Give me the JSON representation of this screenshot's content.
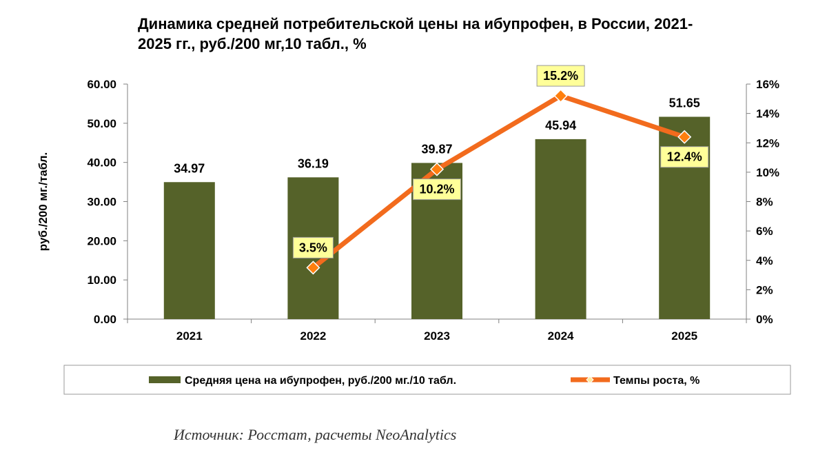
{
  "title_lines": [
    "Динамика средней потребительской цены на ибупрофен, в России, 2021-",
    "2025 гг., руб./200 мг,10 табл., %"
  ],
  "source": "Источник: Росстат, расчеты NeoAnalytics",
  "colors": {
    "bar": "#556229",
    "line": "#f26b1d",
    "marker_fill": "#ff7f0e",
    "label_bg": "#ffff99",
    "legend_marker_fill": "#ffe9a0"
  },
  "chart_data": {
    "type": "bar",
    "categories": [
      "2021",
      "2022",
      "2023",
      "2024",
      "2025"
    ],
    "series": [
      {
        "name": "Средняя цена на ибупрофен, руб./200 мг./10 табл.",
        "type": "bar",
        "axis": "left",
        "values": [
          34.97,
          36.19,
          39.87,
          45.94,
          51.65
        ],
        "labels": [
          "34.97",
          "36.19",
          "39.87",
          "45.94",
          "51.65"
        ]
      },
      {
        "name": "Темпы роста, %",
        "type": "line",
        "axis": "right",
        "values": [
          null,
          3.5,
          10.2,
          15.2,
          12.4
        ],
        "labels": [
          "",
          "3.5%",
          "10.2%",
          "15.2%",
          "12.4%"
        ],
        "label_positions": [
          "",
          "above",
          "below",
          "above",
          "below"
        ]
      }
    ],
    "y_left": {
      "label": "руб./200 мг./табл.",
      "range": [
        0,
        60
      ],
      "ticks": [
        "0.00",
        "10.00",
        "20.00",
        "30.00",
        "40.00",
        "50.00",
        "60.00"
      ]
    },
    "y_right": {
      "range": [
        0,
        16
      ],
      "ticks": [
        "0%",
        "2%",
        "4%",
        "6%",
        "8%",
        "10%",
        "12%",
        "14%",
        "16%"
      ]
    },
    "grid": false,
    "legend": "bottom"
  }
}
